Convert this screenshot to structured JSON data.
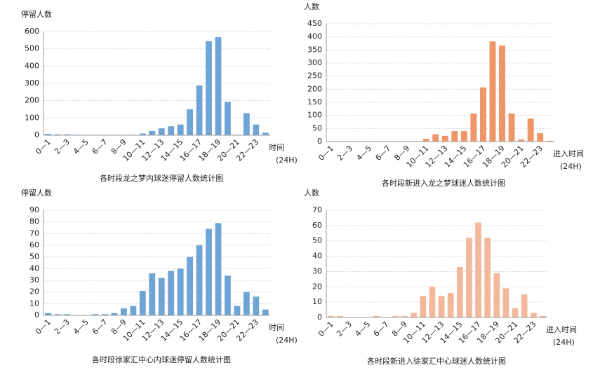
{
  "chart_data": [
    {
      "type": "bar",
      "title": "各时段龙之梦内球迷停留人数统计图",
      "y_label": "停留人数",
      "x_label": "时间",
      "x_label_unit": "(24H)",
      "categories": [
        "0—1",
        null,
        "2—3",
        null,
        "4—5",
        null,
        "6—7",
        null,
        "8—9",
        null,
        "10—11",
        null,
        "12—13",
        null,
        "14—15",
        null,
        "16—17",
        null,
        "18—19",
        null,
        "20—21",
        null,
        "22—23",
        null
      ],
      "values": [
        8,
        5,
        5,
        3,
        2,
        2,
        2,
        2,
        2,
        3,
        10,
        25,
        40,
        52,
        62,
        150,
        288,
        545,
        568,
        193,
        3,
        128,
        62,
        15
      ],
      "color": "#6fa5d6",
      "ylim": [
        0,
        600
      ],
      "yticks": [
        0,
        100,
        200,
        300,
        400,
        500,
        600
      ],
      "grid": true
    },
    {
      "type": "bar",
      "title": "各时段新进入龙之梦球迷人数统计图",
      "y_label": "人数",
      "x_label": "进入时间",
      "x_label_unit": "(24H)",
      "categories": [
        "0—1",
        null,
        "2—3",
        null,
        "4—5",
        null,
        "6—7",
        null,
        "8—9",
        null,
        "10—11",
        null,
        "12—13",
        null,
        "14—15",
        null,
        "16—17",
        null,
        "18—19",
        null,
        "20—21",
        null,
        "22—23",
        null
      ],
      "values": [
        2,
        2,
        2,
        2,
        2,
        2,
        2,
        2,
        2,
        2,
        10,
        28,
        22,
        40,
        40,
        107,
        207,
        383,
        367,
        107,
        8,
        88,
        32,
        3
      ],
      "color": "#ee9668",
      "ylim": [
        0,
        450
      ],
      "yticks": [
        0,
        50,
        100,
        150,
        200,
        250,
        300,
        350,
        400,
        450
      ],
      "grid": true
    },
    {
      "type": "bar",
      "title": "各时段徐家汇中心内球迷停留人数统计图",
      "y_label": "停留人数",
      "x_label": "时间",
      "x_label_unit": "(24H)",
      "categories": [
        "0—1",
        null,
        "2—3",
        null,
        "4—5",
        null,
        "6—7",
        null,
        "8—9",
        null,
        "10—11",
        null,
        "12—13",
        null,
        "14—15",
        null,
        "16—17",
        null,
        "18—19",
        null,
        "20—21",
        null,
        "22—23",
        null
      ],
      "values": [
        2,
        1,
        1,
        0,
        0,
        1,
        1,
        2,
        6,
        8,
        21,
        36,
        32,
        38,
        40,
        50,
        60,
        74,
        79,
        34,
        8,
        20,
        16,
        5
      ],
      "color": "#6fa5d6",
      "ylim": [
        0,
        90
      ],
      "yticks": [
        0,
        10,
        20,
        30,
        40,
        50,
        60,
        70,
        80,
        90
      ],
      "grid": true
    },
    {
      "type": "bar",
      "title": "各时段新进入徐家汇中心球迷人数统计图",
      "y_label": "人数",
      "x_label": "进入时间",
      "x_label_unit": "(24H)",
      "categories": [
        "0—1",
        null,
        "2—3",
        null,
        "4—5",
        null,
        "6—7",
        null,
        "8—9",
        null,
        "10—11",
        null,
        "12—13",
        null,
        "14—15",
        null,
        "16—17",
        null,
        "18—19",
        null,
        "20—21",
        null,
        "22—23",
        null
      ],
      "values": [
        1,
        1,
        0,
        0,
        0,
        1,
        0,
        1,
        1,
        3,
        14,
        20,
        14,
        16,
        33,
        52,
        62,
        52,
        29,
        19,
        6,
        15,
        3,
        1
      ],
      "color": "#f3b89c",
      "ylim": [
        0,
        70
      ],
      "yticks": [
        0,
        10,
        20,
        30,
        40,
        50,
        60,
        70
      ],
      "grid": true
    }
  ]
}
